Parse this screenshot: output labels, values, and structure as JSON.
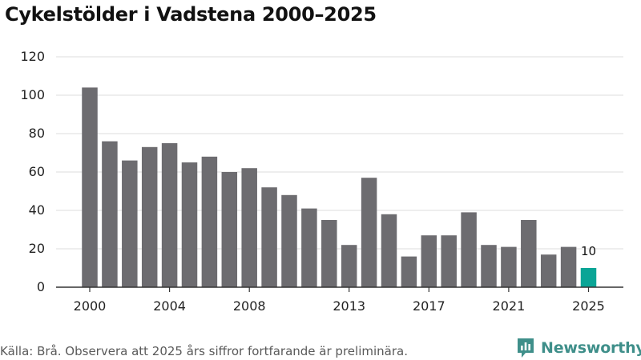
{
  "chart_data": {
    "type": "bar",
    "title": "Cykelstölder i Vadstena 2000–2025",
    "categories": [
      "2000",
      "2001",
      "2002",
      "2003",
      "2004",
      "2005",
      "2006",
      "2007",
      "2008",
      "2009",
      "2010",
      "2011",
      "2012",
      "2013",
      "2014",
      "2015",
      "2016",
      "2017",
      "2018",
      "2019",
      "2020",
      "2021",
      "2022",
      "2023",
      "2024",
      "2025"
    ],
    "values": [
      104,
      76,
      66,
      73,
      75,
      65,
      68,
      60,
      62,
      52,
      48,
      41,
      35,
      22,
      57,
      38,
      16,
      27,
      27,
      39,
      22,
      21,
      35,
      17,
      21,
      10
    ],
    "x_tick_labels": [
      "2000",
      "2004",
      "2008",
      "2013",
      "2017",
      "2021",
      "2025"
    ],
    "y_ticks": [
      0,
      20,
      40,
      60,
      80,
      100,
      120
    ],
    "ylim": [
      0,
      120
    ],
    "xlabel": "",
    "ylabel": "",
    "grid": "horizontal",
    "legend": "none",
    "data_labels": [
      {
        "category": "2025",
        "value": 10,
        "text": "10"
      }
    ],
    "colors": {
      "bar": "#6d6c70",
      "highlight": "#0aa596",
      "grid": "#dedede",
      "axis": "#333333"
    },
    "highlight_category": "2025"
  },
  "footer": {
    "source": "Källa: Brå. Observera att 2025 års siffror fortfarande är preliminära.",
    "brand": "Newsworthy",
    "brand_icon": "newsworthy-logo-icon"
  }
}
